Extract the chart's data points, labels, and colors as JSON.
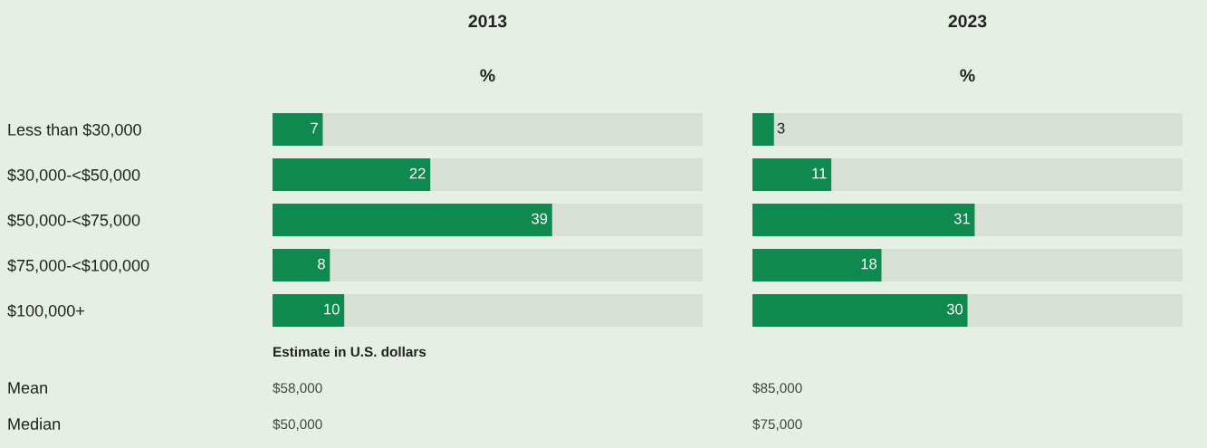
{
  "chart_data": [
    {
      "type": "bar",
      "orientation": "horizontal",
      "title": "2013",
      "subtitle": "%",
      "categories": [
        "Less than $30,000",
        "$30,000-<$50,000",
        "$50,000-<$75,000",
        "$75,000-<$100,000",
        "$100,000+"
      ],
      "values": [
        7,
        22,
        39,
        8,
        10
      ],
      "color": "#0f8a4f",
      "xlim": [
        0,
        60
      ],
      "data_labels": true,
      "tick_labels": "y",
      "annotations": [
        "Estimate in U.S. dollars",
        "Mean",
        "$58,000",
        "Median",
        "$50,000"
      ]
    },
    {
      "type": "bar",
      "orientation": "horizontal",
      "title": "2023",
      "subtitle": "%",
      "categories": [
        null,
        null,
        null,
        null,
        null
      ],
      "values": [
        3,
        11,
        31,
        18,
        30
      ],
      "color": "#0f8a4f",
      "xlim": [
        0,
        60
      ],
      "data_labels": true,
      "tick_labels": false,
      "annotations": [
        "$85,000",
        "$75,000"
      ]
    }
  ]
}
